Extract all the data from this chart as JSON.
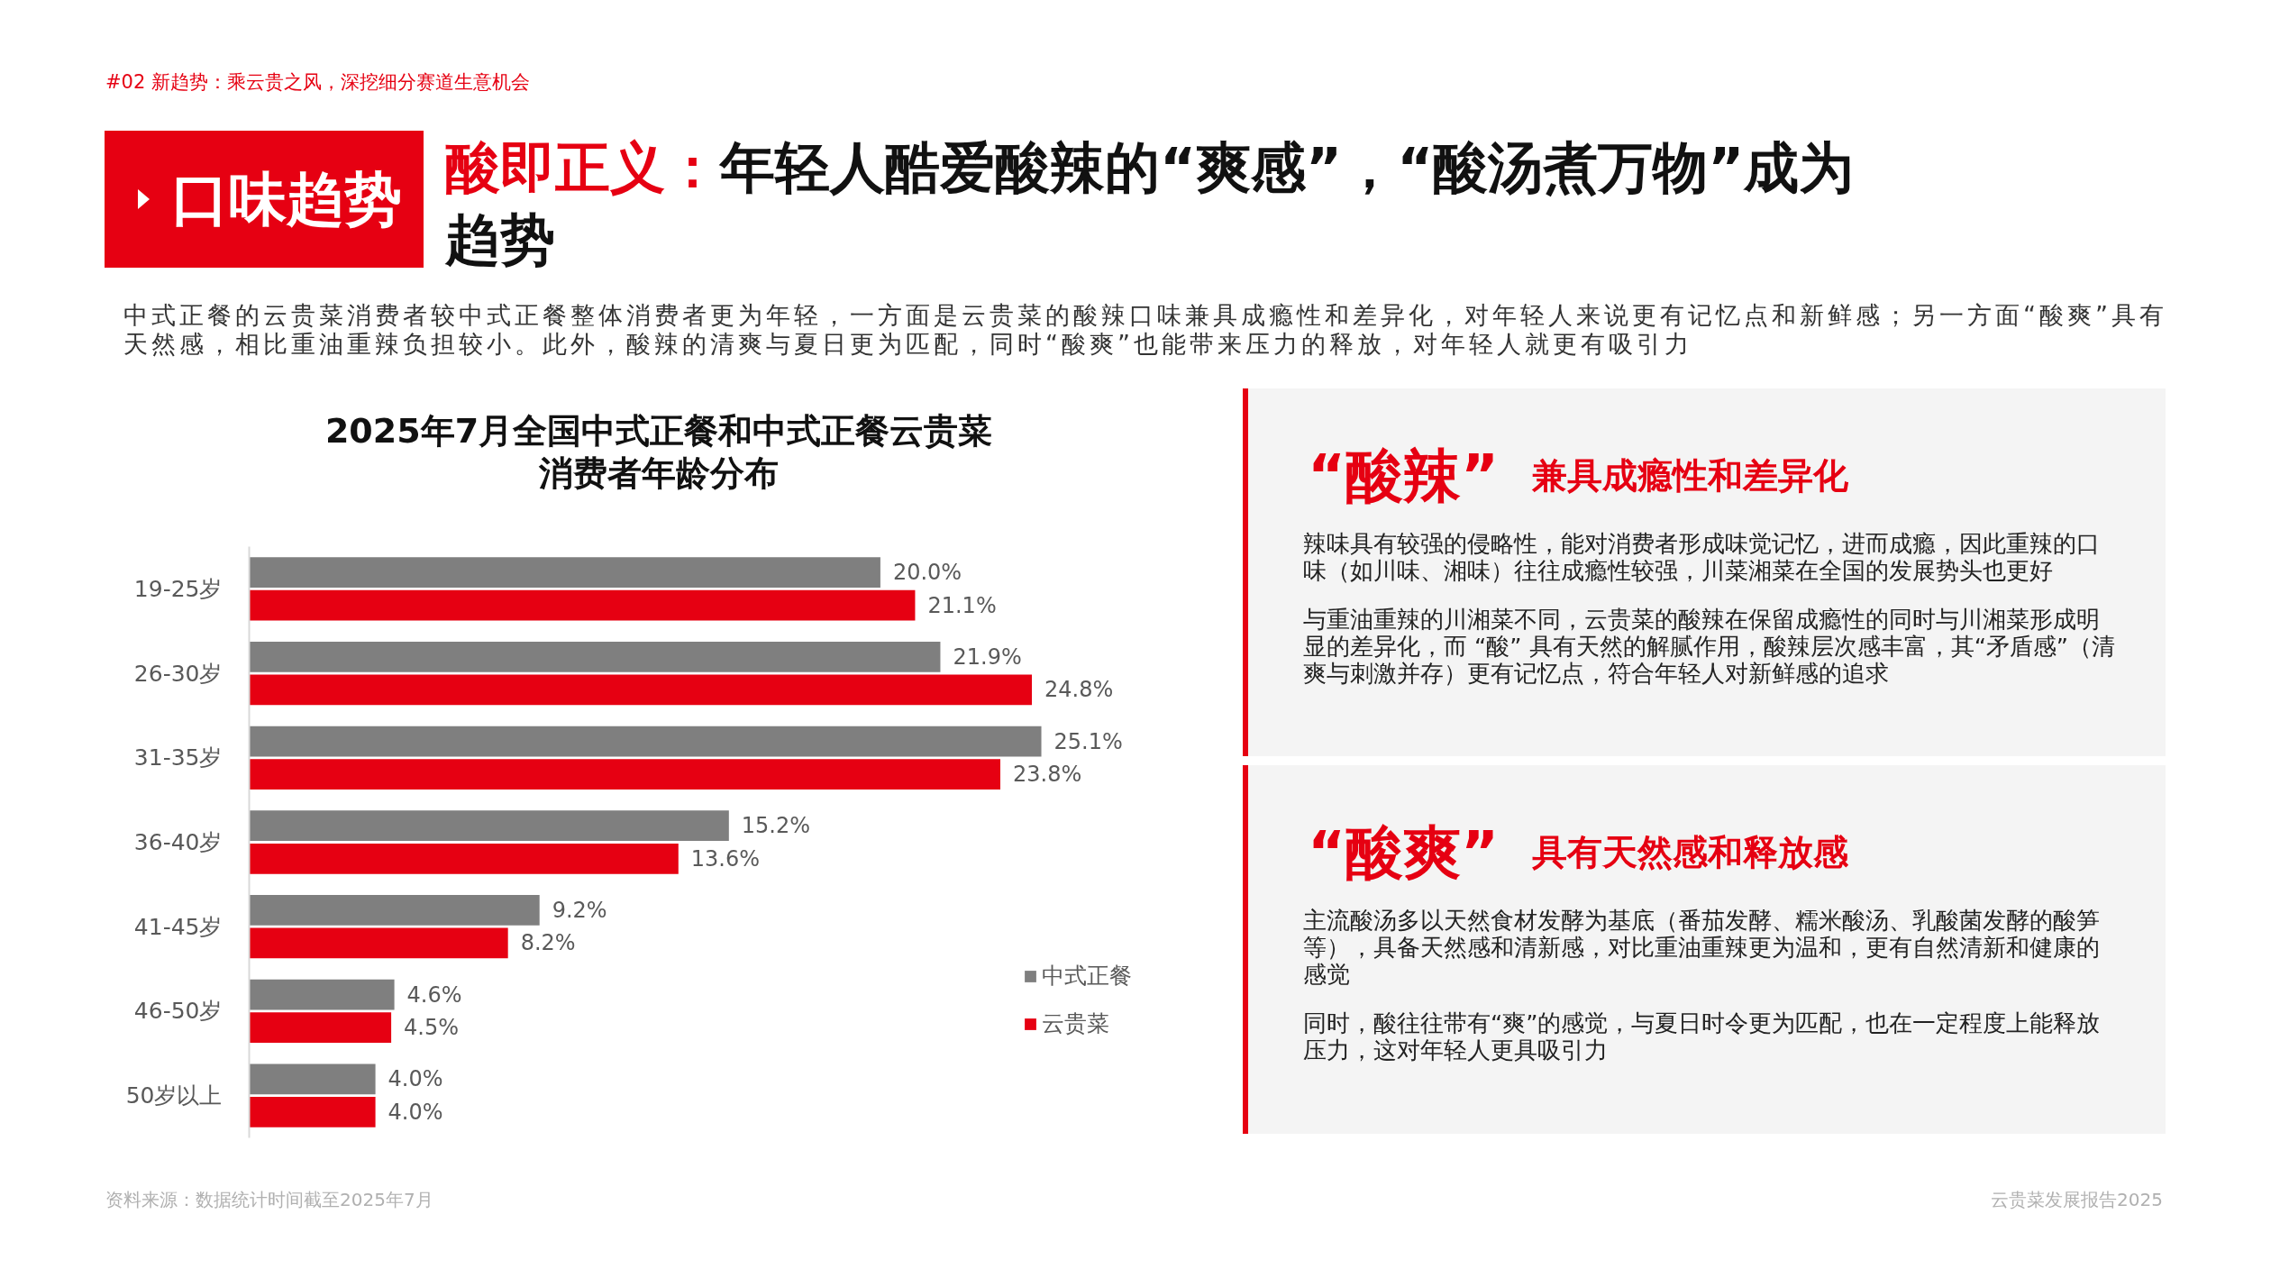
{
  "chart_data": {
    "type": "bar",
    "orientation": "horizontal",
    "title": "2025年7月全国中式正餐和中式正餐云贵菜消费者年龄分布",
    "categories": [
      "19-25岁",
      "26-30岁",
      "31-35岁",
      "36-40岁",
      "41-45岁",
      "46-50岁",
      "50岁以上"
    ],
    "series": [
      {
        "name": "中式正餐",
        "color": "#7f7f7f",
        "values": [
          20.0,
          21.9,
          25.1,
          15.2,
          9.2,
          4.6,
          4.0
        ],
        "value_labels": [
          "20.0%",
          "21.9%",
          "25.1%",
          "15.2%",
          "9.2%",
          "4.6%",
          "4.0%"
        ]
      },
      {
        "name": "云贵菜",
        "color": "#e60012",
        "values": [
          21.1,
          24.8,
          23.8,
          13.6,
          8.2,
          4.5,
          4.0
        ],
        "value_labels": [
          "21.1%",
          "24.8%",
          "23.8%",
          "13.6%",
          "8.2%",
          "4.5%",
          "4.0%"
        ]
      }
    ],
    "legend": "bottom right",
    "tick_labels": "y",
    "annotations": [
      "#02 新趋势：乘云贵之风，深挖细分赛道生意机会",
      "口味趋势",
      "酸即正义：年轻人酷爱酸辣的“爽感”，“酸汤煮万物”成为趋势",
      "中式正餐的云贵菜消费者较中式正餐整体消费者更为年轻，一方面是云贵菜的酸辣口味兼具成瘾性和差异化，对年轻人来说更有记忆点和新鲜感；另一方面“酸爽”具有天然感，相比重油重辣负担较小。此外，酸辣的清爽与夏日更为匹配，同时“酸爽”也能带来压力的释放，对年轻人就更有吸引力",
      "“酸辣”",
      "兼具成瘾性和差异化",
      "辣味具有较强的侵略性，能对消费者形成味觉记忆，进而成瘾，因此重辣的口味（如川味、湘味）往往成瘾性较强，川菜湘菜在全国的发展势头也更好",
      "与重油重辣的川湘菜不同，云贵菜的酸辣在保留成瘾性的同时与川湘菜形成明显的差异化，而 “酸” 具有天然的解腻作用，酸辣层次感丰富，其“矛盾感”（清爽与刺激并存）更有记忆点，符合年轻人对新鲜感的追求",
      "“酸爽”",
      "具有天然感和释放感",
      "主流酸汤多以天然食材发酵为基底（番茄发酵、糯米酸汤、乳酸菌发酵的酸笋等），具备天然感和清新感，对比重油重辣更为温和，更有自然清新和健康的感觉",
      "同时，酸往往带有“爽”的感觉，与夏日时令更为匹配，也在一定程度上能释放压力，这对年轻人更具吸引力",
      "资料来源：数据统计时间截至2025年7月",
      "云贵菜发展报告2025"
    ]
  }
}
